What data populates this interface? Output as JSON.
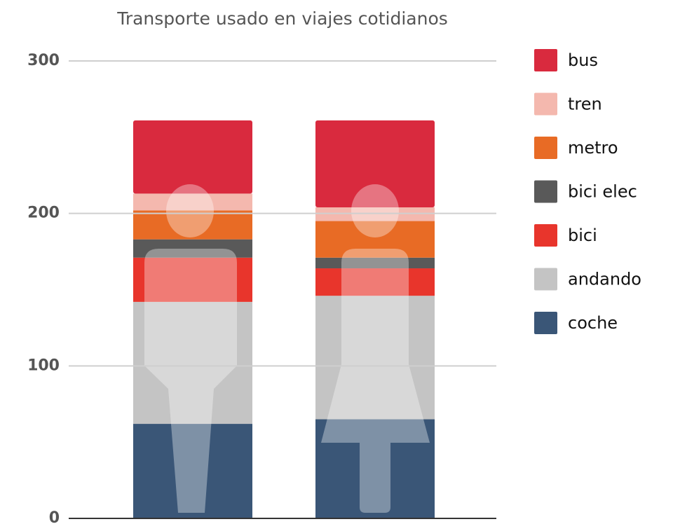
{
  "chart_data": {
    "type": "stacked_bar",
    "title": "Transporte usado en viajes cotidianos",
    "categories": [
      null,
      null
    ],
    "series": [
      {
        "name": "coche",
        "color": "#3a5677",
        "values": [
          62,
          65
        ]
      },
      {
        "name": "andando",
        "color": "#c4c4c4",
        "values": [
          80,
          81
        ]
      },
      {
        "name": "bici",
        "color": "#e8352c",
        "values": [
          29,
          18
        ]
      },
      {
        "name": "bici elec",
        "color": "#595959",
        "values": [
          12,
          7
        ]
      },
      {
        "name": "metro",
        "color": "#e86b25",
        "values": [
          19,
          24
        ]
      },
      {
        "name": "tren",
        "color": "#f4b8ae",
        "values": [
          11,
          9
        ]
      },
      {
        "name": "bus",
        "color": "#d92a3e",
        "values": [
          48,
          57
        ]
      }
    ],
    "ylim": [
      0,
      300
    ],
    "yticks": [
      0,
      100,
      200,
      300
    ],
    "grid": true,
    "legend": "right"
  }
}
